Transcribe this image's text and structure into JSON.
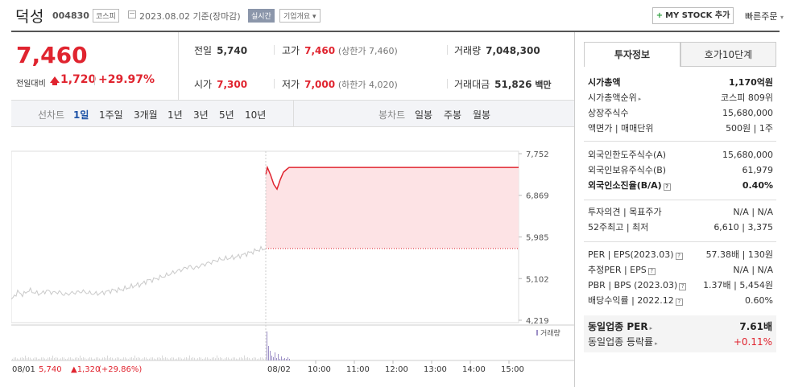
{
  "header": {
    "name": "덕성",
    "code": "004830",
    "market": "코스피",
    "date": "2023.08.02 기준(장마감)",
    "realtime": "실시간",
    "corp_info": "기업개요 ▾",
    "mystock": "MY STOCK 추가",
    "mystock_plus": "+",
    "quick_order": "빠른주문",
    "quick_arrow": "▾"
  },
  "price": {
    "current": "7,460",
    "change_label": "전일대비",
    "change": "1,720",
    "change_pct": "+29.97%",
    "direction": "up"
  },
  "info": {
    "prev_label": "전일",
    "prev": "5,740",
    "high_label": "고가",
    "high": "7,460",
    "high_sub": "(상한가 7,460)",
    "volume_label": "거래량",
    "volume": "7,048,300",
    "open_label": "시가",
    "open": "7,300",
    "low_label": "저가",
    "low": "7,000",
    "low_sub": "(하한가 4,020)",
    "amount_label": "거래대금",
    "amount": "51,826",
    "amount_unit": "백만"
  },
  "toolbar": {
    "line_label": "선차트",
    "line_periods": [
      "1일",
      "1주일",
      "3개월",
      "1년",
      "3년",
      "5년",
      "10년"
    ],
    "active_period": "1일",
    "candle_label": "봉차트",
    "candle_periods": [
      "일봉",
      "주봉",
      "월봉"
    ]
  },
  "chart_data": {
    "type": "line",
    "y_ticks": [
      "7,752",
      "6,869",
      "5,985",
      "5,102",
      "4,219"
    ],
    "ylim": [
      4219,
      7752
    ],
    "prev_close": 5740,
    "x_labels_bottom": [
      "08/01",
      "08/02",
      "10:00",
      "11:00",
      "12:00",
      "13:00",
      "14:00",
      "15:00"
    ],
    "volume_legend": "거래량",
    "prev_day": {
      "date": "08/01",
      "close": "5,740",
      "change": "▲1,320",
      "change_pct": "(+29.86%)"
    },
    "series_prev_day_approx": [
      4640,
      4820,
      4760,
      4860,
      4800,
      4780,
      4850,
      4800,
      4820,
      4760,
      4790,
      4810,
      4830,
      4800,
      4780,
      4790,
      4820,
      4850,
      4860,
      4880,
      4920,
      4960,
      4980,
      5060,
      5080,
      5120,
      5160,
      5210,
      5260,
      5300,
      5360,
      5320,
      5380,
      5420,
      5460,
      5500,
      5520,
      5540,
      5560,
      5600,
      5640,
      5680,
      5720,
      5740
    ],
    "series_today_approx": [
      7300,
      7460,
      7300,
      7100,
      7000,
      7200,
      7360,
      7420,
      7460,
      7460
    ],
    "colors": {
      "line_prev": "#cccccc",
      "line_today": "#e0242f",
      "fill_today": "#fde3e5",
      "volume_bar": "#9c8fc6"
    }
  },
  "panel": {
    "tab_invest": "투자정보",
    "tab_quote": "호가10단계",
    "rows_a": [
      {
        "k": "시가총액",
        "v": "1,170억원",
        "bold": true
      },
      {
        "k": "시가총액순위",
        "v": "코스피 809위",
        "arrow": true
      },
      {
        "k": "상장주식수",
        "v": "15,680,000"
      },
      {
        "k": "액면가 | 매매단위",
        "v": "500원 | 1주"
      }
    ],
    "rows_b": [
      {
        "k": "외국인한도주식수(A)",
        "v": "15,680,000"
      },
      {
        "k": "외국인보유주식수(B)",
        "v": "61,979"
      },
      {
        "k": "외국인소진율(B/A)",
        "v": "0.40%",
        "bold": true,
        "q": true
      }
    ],
    "rows_c": [
      {
        "k": "투자의견 | 목표주가",
        "v": "N/A | N/A"
      },
      {
        "k": "52주최고 | 최저",
        "v": "6,610 | 3,375"
      }
    ],
    "rows_d": [
      {
        "k": "PER | EPS(2023.03)",
        "v": "57.38배 | 130원",
        "q": true
      },
      {
        "k": "추정PER | EPS",
        "v": "N/A | N/A",
        "q": true
      },
      {
        "k": "PBR | BPS (2023.03)",
        "v": "1.37배 | 5,454원",
        "q": true
      },
      {
        "k": "배당수익률 | 2022.12",
        "v": "0.60%",
        "q": true
      }
    ],
    "peer_per_label": "동일업종 PER",
    "peer_per": "7.61배",
    "peer_rate_label": "동일업종 등락률",
    "peer_rate": "+0.11%"
  }
}
